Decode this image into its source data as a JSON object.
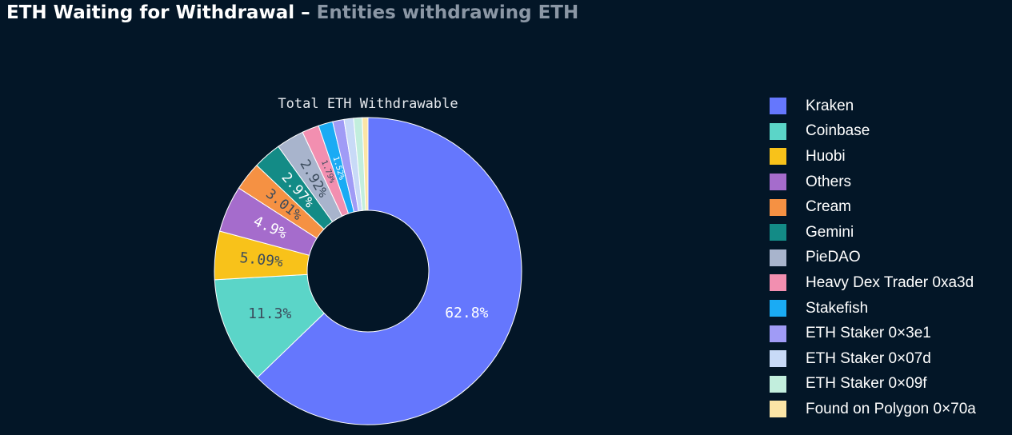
{
  "header": {
    "title": "ETH Waiting for Withdrawal",
    "separator": "–",
    "subtitle": "Entities withdrawing ETH"
  },
  "chart_data": {
    "type": "pie",
    "title": "Total ETH Withdrawable",
    "style": "donut",
    "series": [
      {
        "name": "Kraken",
        "value": 62.8,
        "label": "62.8%",
        "color": "#6577fd"
      },
      {
        "name": "Coinbase",
        "value": 11.3,
        "label": "11.3%",
        "color": "#5bd5c8"
      },
      {
        "name": "Huobi",
        "value": 5.09,
        "label": "5.09%",
        "color": "#f8c21a"
      },
      {
        "name": "Others",
        "value": 4.9,
        "label": "4.9%",
        "color": "#a56ccc"
      },
      {
        "name": "Cream",
        "value": 3.01,
        "label": "3.01%",
        "color": "#f59143"
      },
      {
        "name": "Gemini",
        "value": 2.97,
        "label": "2.97%",
        "color": "#138b86"
      },
      {
        "name": "PieDAO",
        "value": 2.92,
        "label": "2.92%",
        "color": "#a8b4cc"
      },
      {
        "name": "Heavy Dex Trader 0xa3d",
        "value": 1.79,
        "label": "1.79%",
        "color": "#f28fb0"
      },
      {
        "name": "Stakefish",
        "value": 1.52,
        "label": "1.52%",
        "color": "#1aabf4"
      },
      {
        "name": "ETH Staker 0×3e1",
        "value": 1.2,
        "label": "",
        "color": "#a09bf6"
      },
      {
        "name": "ETH Staker 0×07d",
        "value": 1.0,
        "label": "",
        "color": "#c8daf7"
      },
      {
        "name": "ETH Staker 0×09f",
        "value": 0.9,
        "label": "",
        "color": "#c2eedd"
      },
      {
        "name": "Found on Polygon 0×70a",
        "value": 0.6,
        "label": "",
        "color": "#fce5a6"
      }
    ]
  }
}
